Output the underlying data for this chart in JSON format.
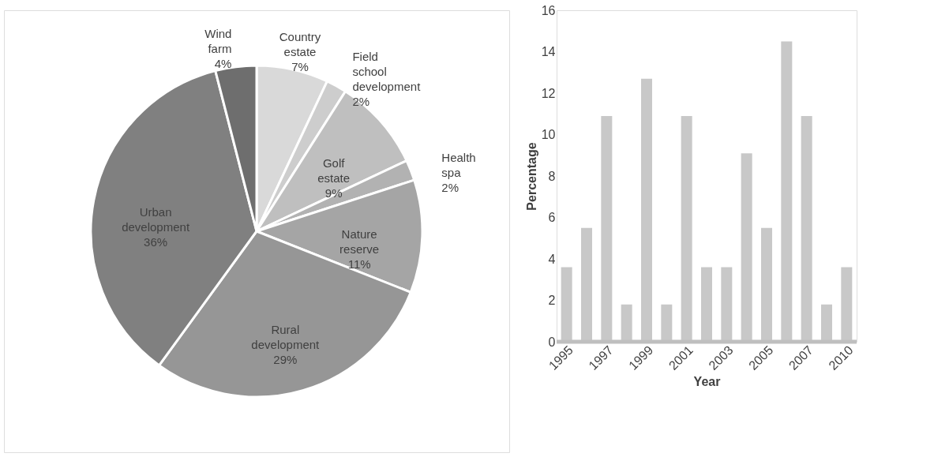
{
  "chart_data": [
    {
      "type": "pie",
      "categories": [
        "Country estate",
        "Field school development",
        "Golf estate",
        "Health spa",
        "Nature reserve",
        "Rural development",
        "Urban development",
        "Wind farm"
      ],
      "values": [
        7,
        2,
        9,
        2,
        11,
        29,
        36,
        4
      ],
      "colors": [
        "#d9d9d9",
        "#cdcdcd",
        "#bfbfbf",
        "#b2b2b2",
        "#a5a5a5",
        "#969696",
        "#808080",
        "#6e6e6e"
      ],
      "value_labels": [
        "7%",
        "2%",
        "9%",
        "2%",
        "11%",
        "29%",
        "36%",
        "4%"
      ]
    },
    {
      "type": "bar",
      "categories": [
        "1995",
        null,
        "1997",
        null,
        "1999",
        null,
        "2001",
        null,
        "2003",
        null,
        "2005",
        null,
        "2007",
        null,
        "2010"
      ],
      "values": [
        3.6,
        5.5,
        10.9,
        1.8,
        12.7,
        1.8,
        10.9,
        3.6,
        3.6,
        9.1,
        5.5,
        14.5,
        10.9,
        1.8,
        3.6
      ],
      "color": "#c8c8c8",
      "xlabel": "Year",
      "ylabel": "Percentage",
      "ylim": [
        0,
        16
      ],
      "yticks": [
        0,
        2,
        4,
        6,
        8,
        10,
        12,
        14,
        16
      ],
      "grid": false
    }
  ]
}
